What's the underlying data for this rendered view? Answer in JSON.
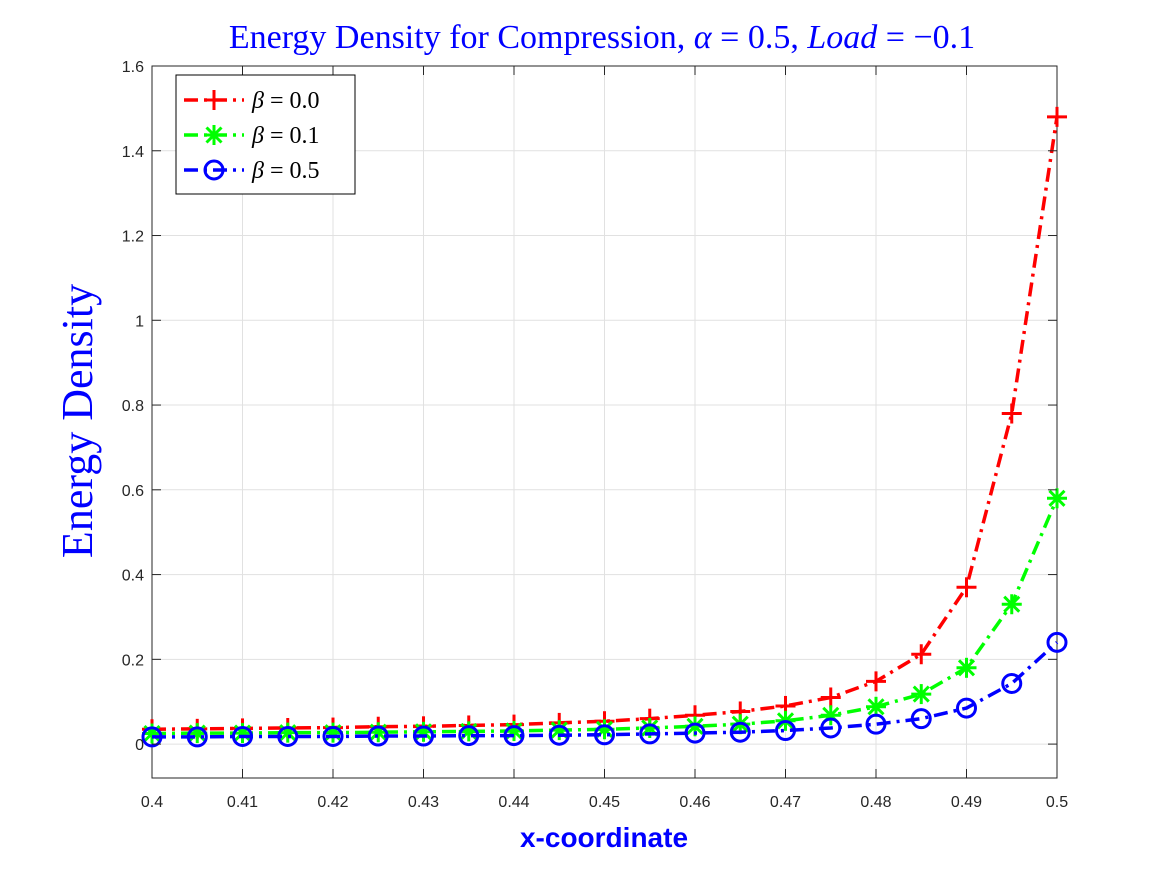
{
  "chart_data": {
    "type": "line",
    "title": "Energy Density for Compression, α = 0.5, Load = −0.1",
    "title_parts": {
      "prefix": "Energy Density for Compression, ",
      "alpha_sym": "α",
      "alpha_eq": " = 0.5, ",
      "load_sym": "Load",
      "load_eq": " = −0.1"
    },
    "xlabel": "x-coordinate",
    "ylabel": "Energy Density",
    "xlim": [
      0.4,
      0.5
    ],
    "ylim": [
      -0.08,
      1.6
    ],
    "xticks": [
      0.4,
      0.41,
      0.42,
      0.43,
      0.44,
      0.45,
      0.46,
      0.47,
      0.48,
      0.49,
      0.5
    ],
    "xtick_labels": [
      "0.4",
      "0.41",
      "0.42",
      "0.43",
      "0.44",
      "0.45",
      "0.46",
      "0.47",
      "0.48",
      "0.49",
      "0.5"
    ],
    "yticks": [
      0,
      0.2,
      0.4,
      0.6,
      0.8,
      1,
      1.2,
      1.4,
      1.6
    ],
    "ytick_labels": [
      "0",
      "0.2",
      "0.4",
      "0.6",
      "0.8",
      "1",
      "1.2",
      "1.4",
      "1.6"
    ],
    "grid": true,
    "legend_position": "top-left",
    "x": [
      0.4,
      0.405,
      0.41,
      0.415,
      0.42,
      0.425,
      0.43,
      0.435,
      0.44,
      0.445,
      0.45,
      0.455,
      0.46,
      0.465,
      0.47,
      0.475,
      0.48,
      0.485,
      0.49,
      0.495,
      0.5
    ],
    "series": [
      {
        "name": "β = 0.0",
        "legend_sym": "β",
        "legend_eq": " = 0.0",
        "color": "#ff0000",
        "marker": "plus",
        "values": [
          0.035,
          0.036,
          0.037,
          0.038,
          0.039,
          0.041,
          0.042,
          0.044,
          0.046,
          0.05,
          0.054,
          0.06,
          0.068,
          0.077,
          0.09,
          0.11,
          0.148,
          0.212,
          0.37,
          0.78,
          1.48
        ]
      },
      {
        "name": "β = 0.1",
        "legend_sym": "β",
        "legend_eq": " = 0.1",
        "color": "#00ff00",
        "marker": "asterisk",
        "values": [
          0.025,
          0.026,
          0.026,
          0.027,
          0.027,
          0.028,
          0.029,
          0.03,
          0.031,
          0.033,
          0.035,
          0.038,
          0.042,
          0.047,
          0.055,
          0.068,
          0.088,
          0.118,
          0.18,
          0.33,
          0.58
        ]
      },
      {
        "name": "β = 0.5",
        "legend_sym": "β",
        "legend_eq": " = 0.5",
        "color": "#0000ff",
        "marker": "circle",
        "values": [
          0.017,
          0.017,
          0.018,
          0.018,
          0.018,
          0.019,
          0.019,
          0.02,
          0.02,
          0.021,
          0.022,
          0.024,
          0.026,
          0.028,
          0.032,
          0.038,
          0.047,
          0.06,
          0.085,
          0.143,
          0.24
        ]
      }
    ]
  },
  "colors": {
    "title": "#0000ff",
    "axis_labels": "#0000ff",
    "axes": "#262626",
    "grid": "#e1e1e1"
  }
}
